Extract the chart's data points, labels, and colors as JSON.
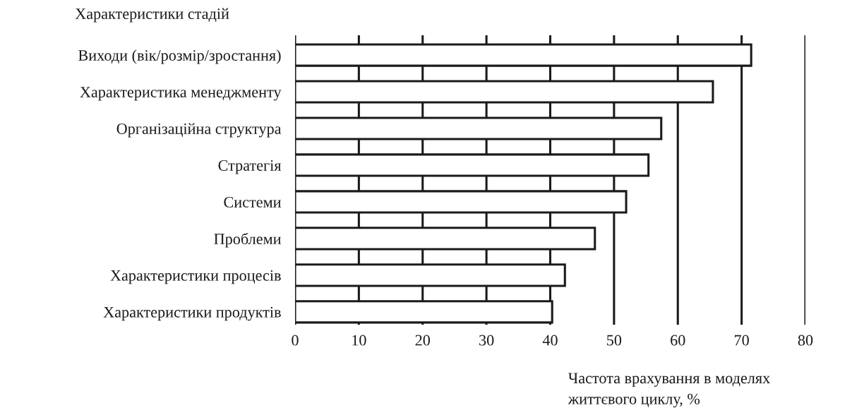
{
  "chart_data": {
    "type": "bar",
    "orientation": "horizontal",
    "ylabel": "Характеристики стадій",
    "xlabel": "Частота врахування в моделях\nжиттєвого циклу, %",
    "categories": [
      "Виходи (вік/розмір/зростання)",
      "Характеристика менеджменту",
      "Організаційна структура",
      "Стратегія",
      "Системи",
      "Проблеми",
      "Характеристики процесів",
      "Характеристики продуктів"
    ],
    "values": [
      71.5,
      65.5,
      57.4,
      55.4,
      51.9,
      47.0,
      42.3,
      40.3
    ],
    "color": "#ffffff",
    "xlim": [
      0,
      80
    ],
    "xticks": [
      0,
      10,
      20,
      30,
      40,
      50,
      60,
      70,
      80
    ],
    "grid": "x"
  }
}
